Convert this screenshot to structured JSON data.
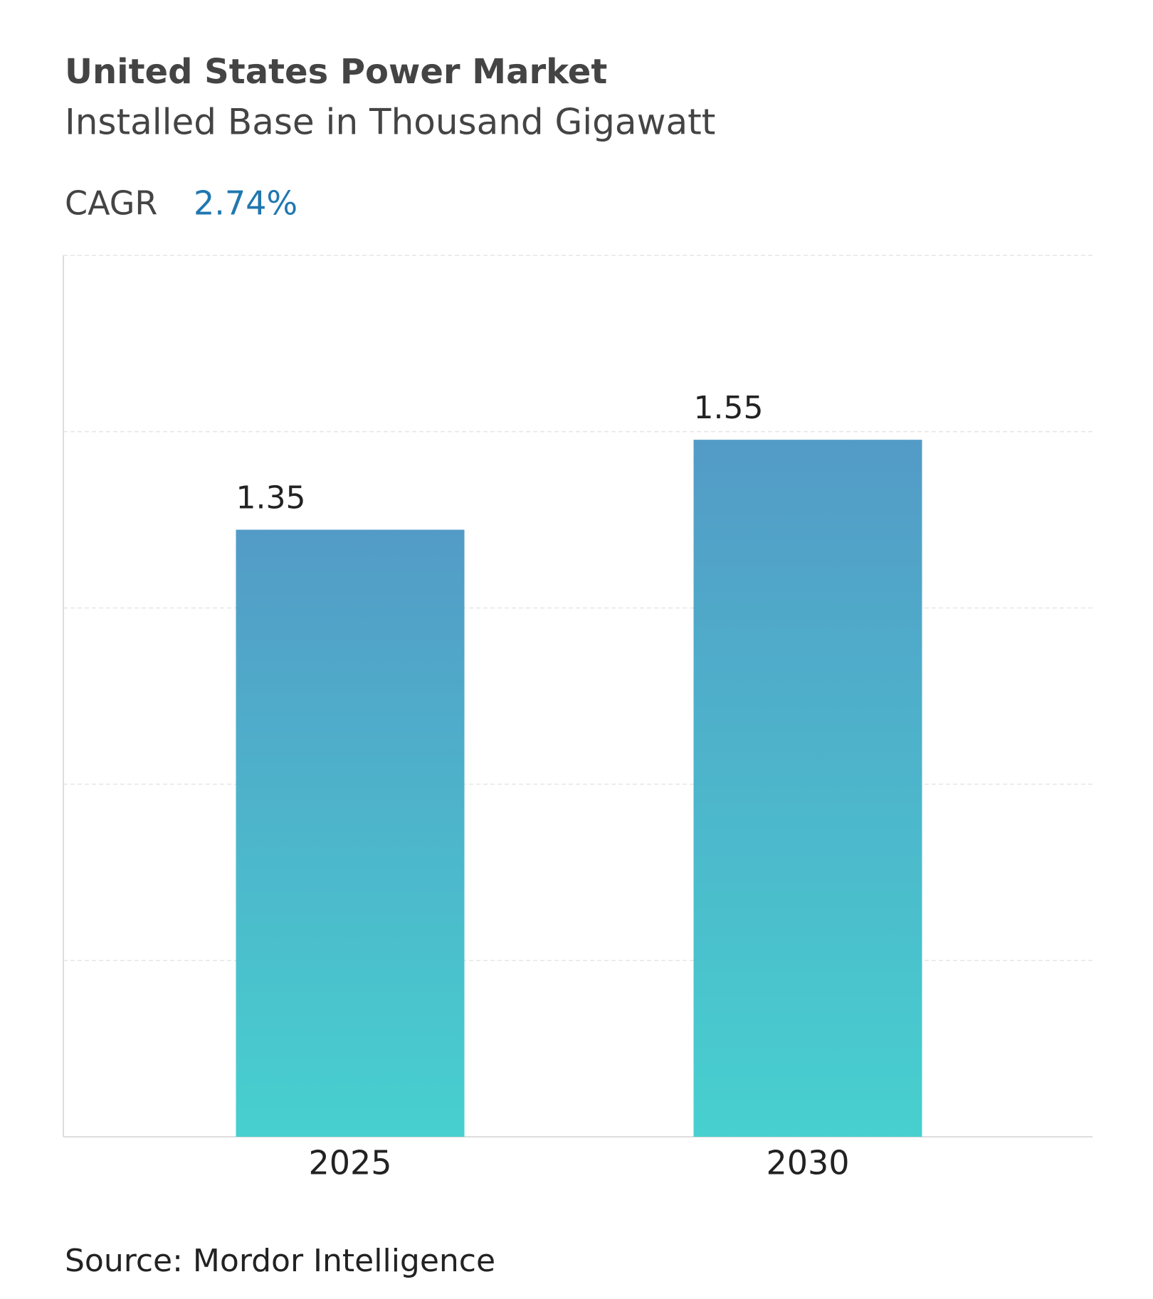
{
  "chart_data": {
    "type": "bar",
    "title": "United States Power Market",
    "subtitle": "Installed Base in Thousand Gigawatt",
    "cagr_label": "CAGR",
    "cagr_value": "2.74%",
    "categories": [
      "2025",
      "2030"
    ],
    "values": [
      1.35,
      1.55
    ],
    "gradient": [
      "#539bc7",
      "#47d0cf"
    ],
    "ylim": [
      0,
      1.96
    ],
    "grid": true,
    "source": "Source: Mordor Intelligence"
  }
}
